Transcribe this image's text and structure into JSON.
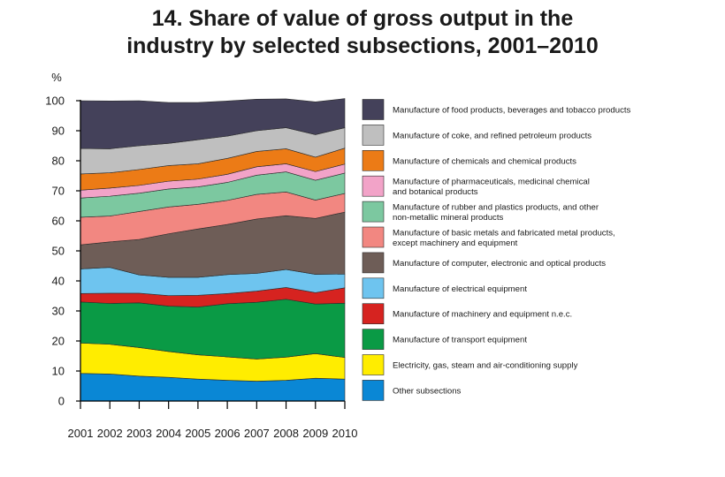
{
  "title_line1": "14. Share of value of gross output in the",
  "title_line2": "industry by selected subsections, 2001–2010",
  "chart_data": {
    "type": "area",
    "stacked": true,
    "title": "14. Share of value of gross output in the industry by selected subsections, 2001–2010",
    "ylabel": "%",
    "xlabel": "",
    "ylim": [
      0,
      100
    ],
    "yticks": [
      0,
      10,
      20,
      30,
      40,
      50,
      60,
      70,
      80,
      90,
      100
    ],
    "x": [
      "2001",
      "2002",
      "2003",
      "2004",
      "2005",
      "2006",
      "2007",
      "2008",
      "2009",
      "2010"
    ],
    "legend_position": "right",
    "series": [
      {
        "name": "Other subsections",
        "color": "#0a87d5",
        "values": [
          9.2,
          9.0,
          8.3,
          7.9,
          7.3,
          6.9,
          6.6,
          6.9,
          7.6,
          7.3
        ]
      },
      {
        "name": "Electricity, gas, steam and air-conditioning supply",
        "color": "#ffed00",
        "values": [
          10.1,
          9.9,
          9.5,
          8.6,
          8.1,
          7.8,
          7.4,
          7.7,
          8.2,
          7.2
        ]
      },
      {
        "name": "Manufacture of transport equipment",
        "color": "#0a9a45",
        "values": [
          13.7,
          13.6,
          14.9,
          15.1,
          15.9,
          17.7,
          18.9,
          19.3,
          16.5,
          18.1
        ]
      },
      {
        "name": "Manufacture of machinery and equipment n.e.c.",
        "color": "#d62320",
        "values": [
          2.8,
          3.4,
          3.2,
          3.5,
          3.9,
          3.4,
          3.7,
          3.9,
          3.8,
          5.1
        ]
      },
      {
        "name": "Manufacture of electrical equipment",
        "color": "#6ec4ef",
        "values": [
          8.2,
          8.6,
          6.1,
          6.1,
          6.0,
          6.3,
          5.9,
          6.0,
          6.1,
          4.6
        ]
      },
      {
        "name": "Manufacture of computer, electronic  and optical products",
        "color": "#6e5d57",
        "values": [
          8.0,
          8.5,
          11.8,
          14.5,
          16.1,
          16.7,
          18.1,
          17.9,
          18.6,
          20.6
        ]
      },
      {
        "name": "Manufacture of basic metals and fabricated metal products, except machinery and equipment",
        "color": "#f28781",
        "values": [
          9.2,
          8.6,
          9.3,
          8.9,
          8.2,
          8.0,
          8.2,
          7.9,
          6.1,
          6.2
        ]
      },
      {
        "name": "Manufacture of rubber and plastics products, and other non-metallic mineral products",
        "color": "#7cc8a0",
        "values": [
          6.4,
          6.6,
          6.1,
          6.0,
          5.8,
          6.0,
          6.4,
          6.7,
          6.6,
          6.8
        ]
      },
      {
        "name": "Manufacture of pharmaceuticals, medicinal chemical and botanical products",
        "color": "#f2a3c8",
        "values": [
          2.6,
          2.7,
          2.6,
          2.6,
          2.6,
          2.7,
          2.8,
          2.7,
          2.9,
          3.0
        ]
      },
      {
        "name": "Manufacture of chemicals and chemical products",
        "color": "#ec7b16",
        "values": [
          5.4,
          5.1,
          5.3,
          5.2,
          5.1,
          5.3,
          5.1,
          5.0,
          4.8,
          5.3
        ]
      },
      {
        "name": "Manufacture of coke, and refined petroleum products",
        "color": "#bfbfbf",
        "values": [
          8.5,
          8.0,
          7.9,
          7.4,
          8.0,
          7.4,
          6.9,
          7.0,
          7.5,
          6.8
        ]
      },
      {
        "name": "Manufacture of food products, beverages and tobacco products",
        "color": "#44415a",
        "values": [
          15.9,
          15.9,
          15.0,
          13.6,
          12.4,
          11.7,
          10.5,
          9.6,
          10.9,
          9.7
        ]
      }
    ]
  },
  "legend_items": [
    {
      "lines": [
        "Manufacture of food products, beverages and tobacco products"
      ],
      "color": "#44415a"
    },
    {
      "lines": [
        "Manufacture of coke, and refined petroleum products"
      ],
      "color": "#bfbfbf"
    },
    {
      "lines": [
        "Manufacture of chemicals and chemical products"
      ],
      "color": "#ec7b16"
    },
    {
      "lines": [
        "Manufacture of pharmaceuticals, medicinal chemical",
        "and botanical products"
      ],
      "color": "#f2a3c8"
    },
    {
      "lines": [
        "Manufacture of rubber and plastics products, and other",
        "non-metallic mineral products"
      ],
      "color": "#7cc8a0"
    },
    {
      "lines": [
        "Manufacture of basic metals and fabricated metal products,",
        "except machinery and equipment"
      ],
      "color": "#f28781"
    },
    {
      "lines": [
        "Manufacture of computer, electronic  and optical products"
      ],
      "color": "#6e5d57"
    },
    {
      "lines": [
        "Manufacture of electrical equipment"
      ],
      "color": "#6ec4ef"
    },
    {
      "lines": [
        "Manufacture of machinery and equipment n.e.c."
      ],
      "color": "#d62320"
    },
    {
      "lines": [
        "Manufacture of transport equipment"
      ],
      "color": "#0a9a45"
    },
    {
      "lines": [
        "Electricity, gas, steam and air-conditioning supply"
      ],
      "color": "#ffed00"
    },
    {
      "lines": [
        "Other subsections"
      ],
      "color": "#0a87d5"
    }
  ]
}
